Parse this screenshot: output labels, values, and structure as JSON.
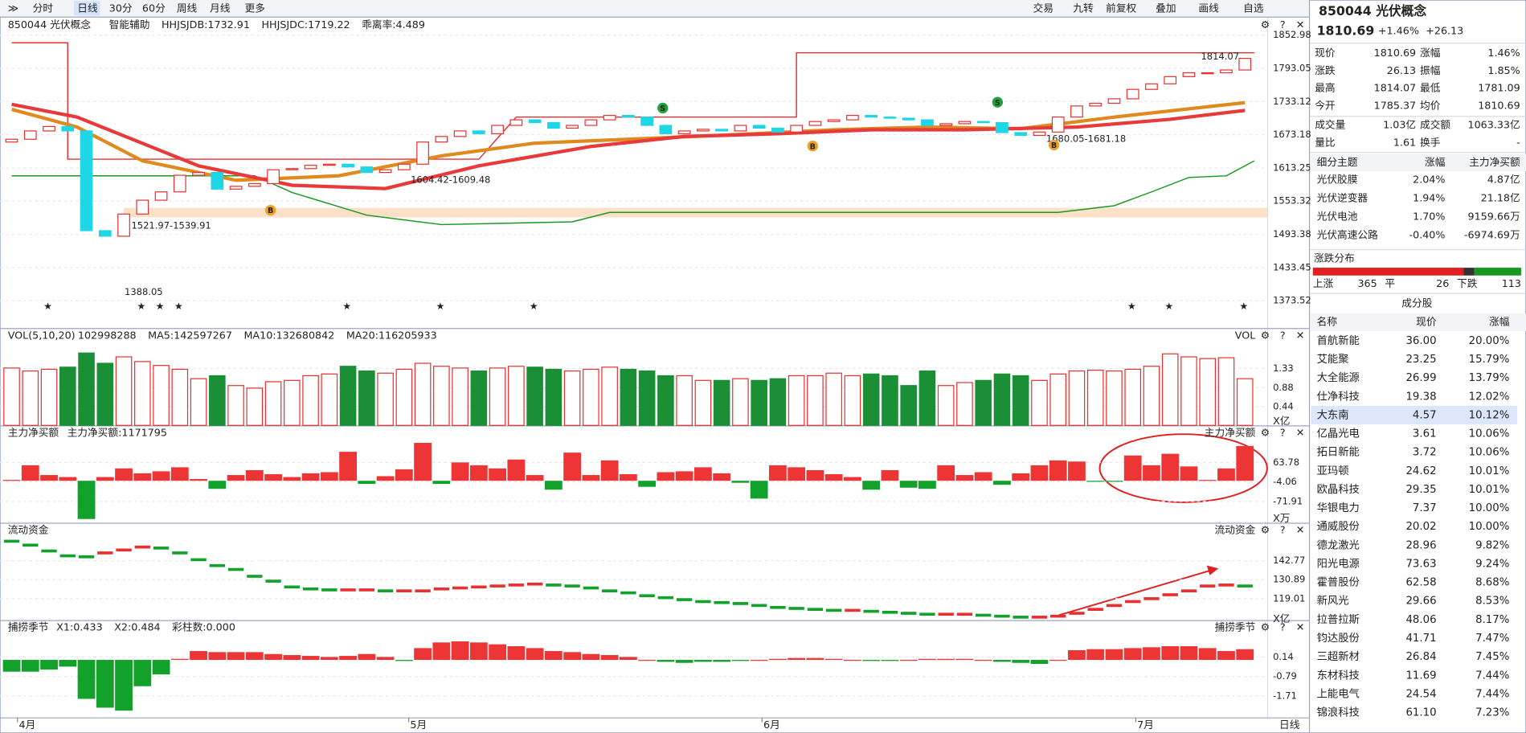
{
  "toolbar": {
    "left": [
      "分时",
      "日线",
      "30分",
      "60分",
      "周线",
      "月线",
      "更多"
    ],
    "right": [
      "交易",
      "九转",
      "前复权",
      "叠加",
      "画线",
      "自选"
    ]
  },
  "chart_data": [
    {
      "type": "candlestick",
      "title": "850044 光伏概念",
      "indicators": [
        {
          "text": "智能辅助",
          "color": "#333333"
        },
        {
          "text": "HHJSJDB:1732.91",
          "color": "#e08a1e"
        },
        {
          "text": "HHJSJDC:1719.22",
          "color": "#e83030"
        },
        {
          "text": "乖离率:4.489",
          "color": "#e08a1e"
        }
      ],
      "open": 1660,
      "values": [
        1665,
        1680,
        1688,
        1680,
        1500,
        1490,
        1530,
        1555,
        1570,
        1600,
        1605,
        1575,
        1580,
        1585,
        1610,
        1612,
        1618,
        1620,
        1615,
        1605,
        1610,
        1620,
        1660,
        1670,
        1680,
        1675,
        1690,
        1700,
        1695,
        1685,
        1690,
        1700,
        1708,
        1705,
        1690,
        1675,
        1680,
        1683,
        1680,
        1690,
        1685,
        1678,
        1690,
        1697,
        1700,
        1708,
        1705,
        1703,
        1700,
        1690,
        1693,
        1697,
        1695,
        1677,
        1672,
        1678,
        1705,
        1725,
        1730,
        1738,
        1755,
        1765,
        1778,
        1785,
        1785,
        1790,
        1811
      ],
      "up_color": "#e83030",
      "down_color": "#1fd6e6",
      "ylim": [
        1354.13,
        1863.56
      ],
      "yticks": [
        1852.98,
        1793.05,
        1733.12,
        1673.18,
        1613.25,
        1553.32,
        1493.38,
        1433.45,
        1373.52
      ],
      "lines": [
        {
          "color": "#e83030",
          "width": 1.2,
          "x": [
            0,
            3,
            3,
            25,
            27,
            42,
            42,
            66.5
          ],
          "values": [
            1839,
            1839,
            1629,
            1629,
            1705,
            1705,
            1821,
            1821
          ]
        },
        {
          "color": "#17991f",
          "width": 1.2,
          "x": [
            0,
            13,
            15,
            19,
            23,
            30,
            32,
            56,
            59,
            61,
            63,
            65,
            66.5
          ],
          "values": [
            1599,
            1599,
            1569,
            1528,
            1511,
            1516,
            1533,
            1533,
            1545,
            1570,
            1596,
            1599,
            1626
          ]
        },
        {
          "color": "#e08a1e",
          "width": 3.5,
          "x": [
            0,
            3.5,
            7,
            12,
            17.5,
            23,
            28,
            33,
            38.5,
            44,
            49,
            54,
            59,
            66
          ],
          "values": [
            1719,
            1687,
            1626,
            1591,
            1599,
            1635,
            1658,
            1665,
            1673,
            1682,
            1687,
            1684,
            1705,
            1731
          ]
        },
        {
          "color": "#e83a3a",
          "width": 3.5,
          "x": [
            0,
            3.5,
            10,
            15,
            20,
            25,
            31,
            36,
            41,
            46,
            51,
            57,
            62,
            66
          ],
          "values": [
            1728,
            1705,
            1617,
            1582,
            1576,
            1617,
            1652,
            1670,
            1675,
            1682,
            1682,
            1687,
            1701,
            1717
          ]
        }
      ],
      "band": {
        "from": 1524,
        "to": 1541,
        "color": "#fde0c8"
      },
      "annotations": [
        "1814.07",
        "1521.97-1539.91",
        "1388.05",
        "1604.42-1609.48",
        "1680.05-1681.18"
      ],
      "signals": [
        "B",
        "S",
        "B",
        "S",
        "B"
      ],
      "x_labels": [
        "4月",
        "5月",
        "6月",
        "7月"
      ]
    },
    {
      "type": "volume",
      "title": "VOL(5,10,20)",
      "legend": [
        {
          "text": "102998288",
          "color": "#222222"
        },
        {
          "text": "MA5:142597267",
          "color": "#e08a1e"
        },
        {
          "text": "MA10:132680842",
          "color": "#d020d0"
        },
        {
          "text": "MA20:116205933",
          "color": "#17991f"
        }
      ],
      "right_label": "VOL",
      "unit": "X亿",
      "values": [
        1.34,
        1.27,
        1.31,
        1.36,
        1.69,
        1.45,
        1.6,
        1.49,
        1.4,
        1.31,
        1.09,
        1.16,
        0.93,
        0.87,
        1.02,
        1.05,
        1.16,
        1.2,
        1.38,
        1.27,
        1.22,
        1.31,
        1.45,
        1.38,
        1.34,
        1.27,
        1.34,
        1.38,
        1.36,
        1.31,
        1.27,
        1.31,
        1.36,
        1.31,
        1.27,
        1.16,
        1.16,
        1.05,
        1.05,
        1.09,
        1.05,
        1.09,
        1.16,
        1.16,
        1.22,
        1.16,
        1.2,
        1.16,
        0.93,
        1.27,
        0.93,
        1.0,
        1.05,
        1.2,
        1.16,
        1.05,
        1.2,
        1.27,
        1.29,
        1.27,
        1.31,
        1.38,
        1.67,
        1.6,
        1.56,
        1.58,
        1.09
      ],
      "up_color": "#e83030",
      "down_color": "#1b8f35",
      "ylim": [
        0,
        1.75
      ],
      "yticks": [
        1.33,
        0.88,
        0.44
      ]
    },
    {
      "type": "bar",
      "title": "主力净买额",
      "legend": [
        {
          "text": "主力净买额:1171795",
          "color": "#e83030"
        }
      ],
      "right_label": "主力净买额",
      "unit": "X万",
      "values": [
        3,
        54,
        20,
        13,
        -133,
        13,
        43,
        26,
        33,
        47,
        6,
        -28,
        20,
        37,
        23,
        13,
        26,
        30,
        101,
        -11,
        16,
        40,
        132,
        -11,
        64,
        54,
        43,
        74,
        20,
        -31,
        98,
        20,
        71,
        23,
        -21,
        30,
        33,
        47,
        26,
        -7,
        -62,
        54,
        47,
        37,
        23,
        13,
        -31,
        37,
        -24,
        -28,
        54,
        20,
        30,
        -14,
        26,
        54,
        71,
        67,
        -1,
        -1,
        88,
        54,
        94,
        50,
        3,
        43,
        121
      ],
      "up_color": "#ee3535",
      "down_color": "#12a12a",
      "ylim": [
        -146,
        142
      ],
      "yticks": [
        63.78,
        -4.06,
        -71.91
      ]
    },
    {
      "type": "step",
      "title": "流动资金",
      "right_label": "流动资金",
      "unit": "X亿",
      "values": [
        154.95,
        152.51,
        148.86,
        145.82,
        145.21,
        147.64,
        149.47,
        151.3,
        150.69,
        147.64,
        143.38,
        139.73,
        137.29,
        133.03,
        129.98,
        126.33,
        125.11,
        124.5,
        124.5,
        124.5,
        123.89,
        123.89,
        123.89,
        125.11,
        125.72,
        126.33,
        126.94,
        127.55,
        128.15,
        127.55,
        126.94,
        125.72,
        123.89,
        122.67,
        120.85,
        119.63,
        118.41,
        117.19,
        116.58,
        115.97,
        114.75,
        113.54,
        112.93,
        112.32,
        111.71,
        111.71,
        111.1,
        110.49,
        109.88,
        109.27,
        109.27,
        109.27,
        108.66,
        108.06,
        107.45,
        107.45,
        108.06,
        109.88,
        112.32,
        114.75,
        117.19,
        119.02,
        121.46,
        123.89,
        126.94,
        127.55,
        126.94
      ],
      "up_color": "#e83030",
      "down_color": "#12a12a",
      "ylim": [
        103.8,
        164.7
      ],
      "yticks": [
        142.77,
        130.89,
        119.01
      ]
    },
    {
      "type": "bar",
      "title": "捕捞季节",
      "legend": [
        {
          "text": "X1:0.433",
          "color": "#e08a1e"
        },
        {
          "text": "X2:0.484",
          "color": "#d020d0"
        },
        {
          "text": "彩柱数:0.000",
          "color": "#17991f"
        }
      ],
      "right_label": "捕捞季节",
      "values": [
        -0.56,
        -0.56,
        -0.46,
        -0.32,
        -1.85,
        -2.27,
        -2.41,
        -1.25,
        -0.69,
        0.05,
        0.42,
        0.37,
        0.37,
        0.37,
        0.28,
        0.23,
        0.19,
        0.14,
        0.19,
        0.28,
        0.14,
        -0.05,
        0.56,
        0.83,
        0.88,
        0.83,
        0.74,
        0.65,
        0.56,
        0.42,
        0.37,
        0.28,
        0.23,
        0.14,
        0,
        -0.09,
        -0.14,
        -0.09,
        -0.09,
        -0.05,
        0,
        0.05,
        0.09,
        0.09,
        0.05,
        0,
        -0.05,
        -0.05,
        0,
        0.05,
        0.05,
        0.05,
        0,
        -0.09,
        -0.14,
        -0.19,
        0,
        0.46,
        0.51,
        0.51,
        0.56,
        0.6,
        0.65,
        0.65,
        0.56,
        0.42,
        0.51
      ],
      "up_color": "#ee3535",
      "down_color": "#12a12a",
      "ylim": [
        -2.64,
        1.06
      ],
      "yticks": [
        0.14,
        -0.79,
        -1.71
      ]
    }
  ],
  "quote": {
    "code_name": "850044 光伏概念",
    "price": "1810.69",
    "change_pct": "+1.46%",
    "change": "+26.13",
    "stats": [
      [
        "现价",
        "1810.69",
        "涨幅",
        "1.46%"
      ],
      [
        "涨跌",
        "26.13",
        "振幅",
        "1.85%"
      ],
      [
        "最高",
        "1814.07",
        "最低",
        "1781.09"
      ],
      [
        "今开",
        "1785.37",
        "均价",
        "1810.69"
      ],
      [
        "成交量",
        "1.03亿",
        "成交额",
        "1063.33亿"
      ],
      [
        "量比",
        "1.61",
        "换手",
        "-"
      ]
    ],
    "themes": {
      "header": [
        "细分主题",
        "涨幅",
        "主力净买额"
      ],
      "rows": [
        [
          "光伏胶膜",
          "2.04%",
          "4.87亿"
        ],
        [
          "光伏逆变器",
          "1.94%",
          "21.18亿"
        ],
        [
          "光伏电池",
          "1.70%",
          "9159.66万"
        ],
        [
          "光伏高速公路",
          "-0.40%",
          "-6974.69万"
        ]
      ]
    },
    "distribution": {
      "title": "涨跌分布",
      "up_label": "上涨",
      "up": 365,
      "flat_label": "平",
      "flat": 26,
      "down_label": "下跌",
      "down": 113
    },
    "constituents": {
      "title": "成分股",
      "header": [
        "名称",
        "现价",
        "涨幅"
      ],
      "rows": [
        {
          "name": "首航新能",
          "price": "36.00",
          "change": "20.00%"
        },
        {
          "name": "艾能聚",
          "price": "23.25",
          "change": "15.79%"
        },
        {
          "name": "大全能源",
          "price": "26.99",
          "change": "13.79%"
        },
        {
          "name": "仕净科技",
          "price": "19.38",
          "change": "12.02%"
        },
        {
          "name": "大东南",
          "price": "4.57",
          "change": "10.12%",
          "highlight": true
        },
        {
          "name": "亿晶光电",
          "price": "3.61",
          "change": "10.06%"
        },
        {
          "name": "拓日新能",
          "price": "3.72",
          "change": "10.06%"
        },
        {
          "name": "亚玛顿",
          "price": "24.62",
          "change": "10.01%"
        },
        {
          "name": "欧晶科技",
          "price": "29.35",
          "change": "10.01%"
        },
        {
          "name": "华银电力",
          "price": "7.37",
          "change": "10.00%"
        },
        {
          "name": "通威股份",
          "price": "20.02",
          "change": "10.00%",
          "color": "#1a5fd6"
        },
        {
          "name": "德龙激光",
          "price": "28.96",
          "change": "9.82%"
        },
        {
          "name": "阳光电源",
          "price": "73.63",
          "change": "9.24%",
          "color": "#1a5fd6"
        },
        {
          "name": "霍普股份",
          "price": "62.58",
          "change": "8.68%",
          "color": "#17991f"
        },
        {
          "name": "新风光",
          "price": "29.66",
          "change": "8.53%"
        },
        {
          "name": "拉普拉斯",
          "price": "48.06",
          "change": "8.17%"
        },
        {
          "name": "钧达股份",
          "price": "41.71",
          "change": "7.47%"
        },
        {
          "name": "三超新材",
          "price": "26.84",
          "change": "7.45%"
        },
        {
          "name": "东材科技",
          "price": "11.69",
          "change": "7.44%",
          "color": "#1a5fd6"
        },
        {
          "name": "上能电气",
          "price": "24.54",
          "change": "7.44%"
        },
        {
          "name": "锦浪科技",
          "price": "61.10",
          "change": "7.23%"
        }
      ]
    }
  }
}
